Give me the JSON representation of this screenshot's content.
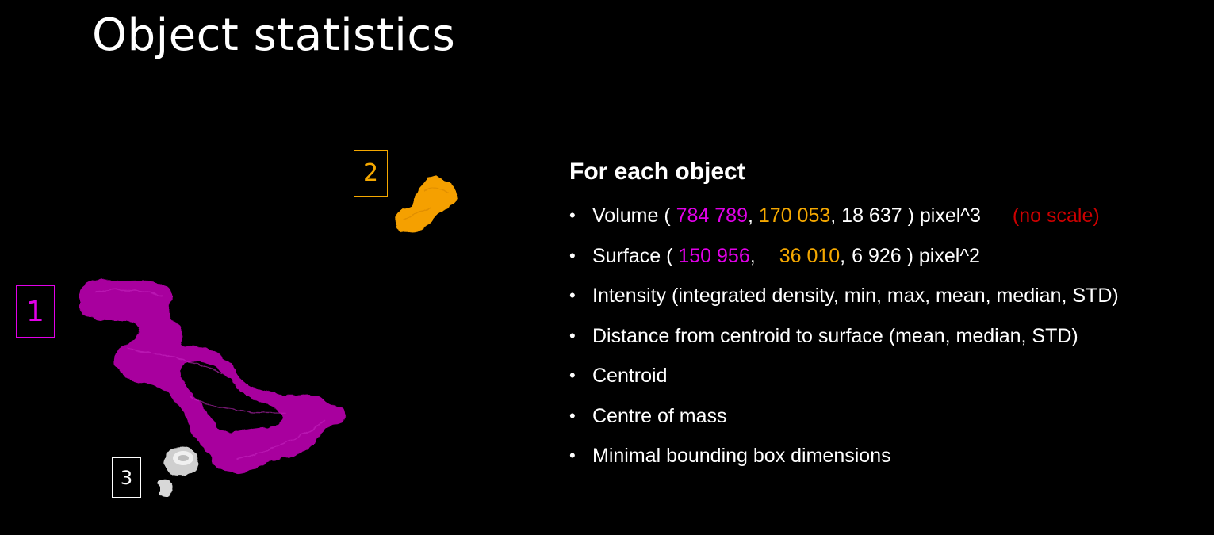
{
  "title": "Object statistics",
  "objects": [
    {
      "label": "1",
      "color": "#e100e8"
    },
    {
      "label": "2",
      "color": "#f5a800"
    },
    {
      "label": "3",
      "color": "#ffffff"
    }
  ],
  "panel": {
    "heading": "For each object",
    "volume": {
      "prefix": "Volume ( ",
      "v1": "784 789",
      "sep1": ", ",
      "v2": "170 053",
      "sep2": ", ",
      "v3": "18 637",
      "suffix": " ) pixel^3",
      "note": "(no scale)"
    },
    "surface": {
      "prefix": "Surface ( ",
      "v1": "150 956",
      "sep1": ",",
      "v2": "36 010",
      "sep2": ",",
      "v3": "6 926",
      "suffix": " ) pixel^2"
    },
    "items": [
      "Intensity (integrated density, min, max, mean, median, STD)",
      "Distance from centroid to surface (mean, median, STD)",
      "Centroid",
      "Centre of mass",
      "Minimal bounding box dimensions"
    ]
  },
  "colors": {
    "background": "#000000",
    "object1": "#e100e8",
    "object2": "#f5a800",
    "object3": "#ffffff",
    "note": "#cc0000"
  }
}
